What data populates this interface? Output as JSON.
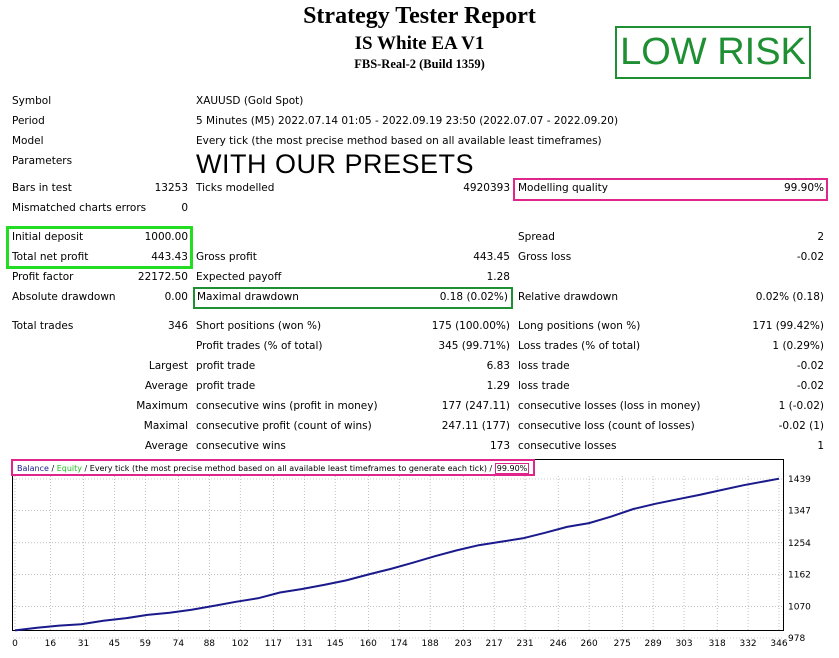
{
  "header": {
    "title": "Strategy Tester Report",
    "ea_name": "IS White EA V1",
    "server": "FBS-Real-2 (Build 1359)",
    "badge": "LOW RISK"
  },
  "info": {
    "symbol_label": "Symbol",
    "symbol_value": "XAUUSD (Gold Spot)",
    "period_label": "Period",
    "period_value": "5 Minutes (M5) 2022.07.14 01:05 - 2022.09.19 23:50 (2022.07.07 - 2022.09.20)",
    "model_label": "Model",
    "model_value": "Every tick (the most precise method based on all available least timeframes)",
    "parameters_label": "Parameters",
    "parameters_value": "WITH OUR PRESETS"
  },
  "stats": {
    "bars_label": "Bars in test",
    "bars_value": "13253",
    "ticks_label": "Ticks modelled",
    "ticks_value": "4920393",
    "mq_label": "Modelling quality",
    "mq_value": "99.90%",
    "mismatch_label": "Mismatched charts errors",
    "mismatch_value": "0",
    "deposit_label": "Initial deposit",
    "deposit_value": "1000.00",
    "spread_label": "Spread",
    "spread_value": "2",
    "netprofit_label": "Total net profit",
    "netprofit_value": "443.43",
    "grossprofit_label": "Gross profit",
    "grossprofit_value": "443.45",
    "grossloss_label": "Gross loss",
    "grossloss_value": "-0.02",
    "pf_label": "Profit factor",
    "pf_value": "22172.50",
    "expected_label": "Expected payoff",
    "expected_value": "1.28",
    "absdd_label": "Absolute drawdown",
    "absdd_value": "0.00",
    "maxdd_label": "Maximal drawdown",
    "maxdd_value": "0.18 (0.02%)",
    "reldd_label": "Relative drawdown",
    "reldd_value": "0.02% (0.18)",
    "trades_label": "Total trades",
    "trades_value": "346",
    "short_label": "Short positions (won %)",
    "short_value": "175 (100.00%)",
    "long_label": "Long positions (won %)",
    "long_value": "171 (99.42%)",
    "ptrades_label": "Profit trades (% of total)",
    "ptrades_value": "345 (99.71%)",
    "ltrades_label": "Loss trades (% of total)",
    "ltrades_value": "1 (0.29%)",
    "largest_label": "Largest",
    "largest_profit_label": "profit trade",
    "largest_profit_value": "6.83",
    "largest_loss_label": "loss trade",
    "largest_loss_value": "-0.02",
    "average_label": "Average",
    "average_profit_label": "profit trade",
    "average_profit_value": "1.29",
    "average_loss_label": "loss trade",
    "average_loss_value": "-0.02",
    "maximum_label": "Maximum",
    "max_wins_label": "consecutive wins (profit in money)",
    "max_wins_value": "177 (247.11)",
    "max_losses_label": "consecutive losses (loss in money)",
    "max_losses_value": "1 (-0.02)",
    "maximal_label": "Maximal",
    "maximal_profit_label": "consecutive profit (count of wins)",
    "maximal_profit_value": "247.11 (177)",
    "maximal_loss_label": "consecutive loss (count of losses)",
    "maximal_loss_value": "-0.02 (1)",
    "avg_cons_label": "Average",
    "avg_wins_label": "consecutive wins",
    "avg_wins_value": "173",
    "avg_losses_label": "consecutive losses",
    "avg_losses_value": "1"
  },
  "chart_legend": {
    "balance": "Balance",
    "sep1": " / ",
    "equity": "Equity",
    "rest": " / Every tick (the most precise method based on all available least timeframes to generate each tick)",
    "sep2": " / ",
    "quality": "99.90%"
  },
  "colors": {
    "green_box": "#22dd22",
    "dark_green_box": "#1e8f32",
    "magenta_box": "#e0268a",
    "line": "#1a1a8c"
  },
  "chart_data": {
    "type": "line",
    "title": "",
    "xlabel": "",
    "ylabel": "",
    "x_ticks": [
      "0",
      "16",
      "31",
      "45",
      "59",
      "74",
      "88",
      "102",
      "117",
      "131",
      "145",
      "160",
      "174",
      "188",
      "203",
      "217",
      "231",
      "246",
      "260",
      "275",
      "289",
      "303",
      "318",
      "332",
      "346"
    ],
    "y_ticks": [
      "978",
      "1070",
      "1162",
      "1254",
      "1347",
      "1439"
    ],
    "xlim": [
      0,
      346
    ],
    "ylim": [
      978,
      1470
    ],
    "series": [
      {
        "name": "Balance",
        "x": [
          0,
          10,
          20,
          30,
          40,
          50,
          60,
          70,
          80,
          90,
          100,
          110,
          120,
          130,
          140,
          150,
          160,
          170,
          180,
          190,
          200,
          210,
          220,
          230,
          240,
          250,
          260,
          270,
          280,
          290,
          300,
          310,
          320,
          330,
          340,
          346
        ],
        "y": [
          1000,
          1008,
          1014,
          1018,
          1028,
          1035,
          1045,
          1051,
          1060,
          1071,
          1083,
          1093,
          1110,
          1120,
          1132,
          1145,
          1162,
          1178,
          1196,
          1215,
          1232,
          1247,
          1257,
          1267,
          1283,
          1300,
          1311,
          1330,
          1352,
          1367,
          1380,
          1393,
          1407,
          1421,
          1433,
          1440
        ]
      }
    ]
  }
}
